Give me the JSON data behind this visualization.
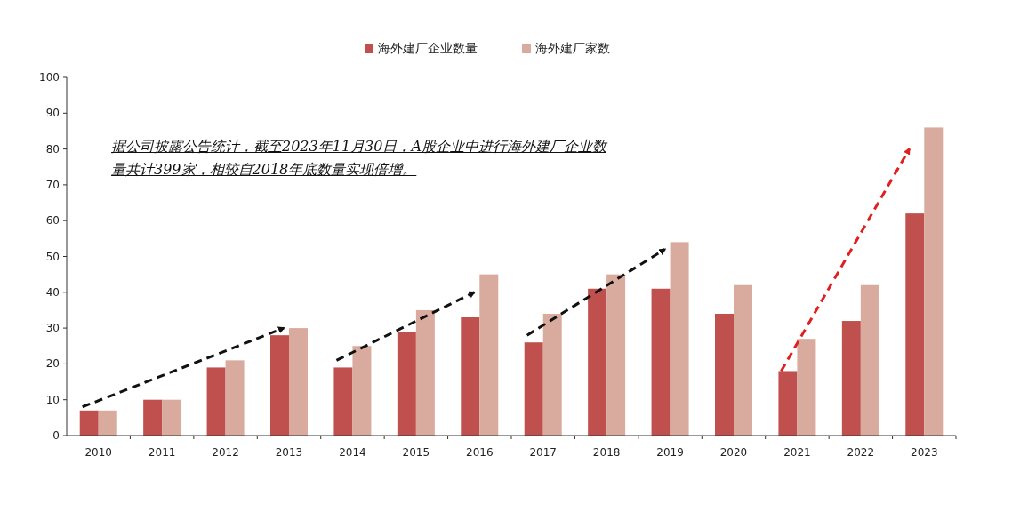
{
  "chart_data": {
    "type": "bar",
    "categories": [
      "2010",
      "2011",
      "2012",
      "2013",
      "2014",
      "2015",
      "2016",
      "2017",
      "2018",
      "2019",
      "2020",
      "2021",
      "2022",
      "2023"
    ],
    "series": [
      {
        "name": "海外建厂企业数量",
        "color": "#c0504d",
        "values": [
          7,
          10,
          19,
          28,
          19,
          29,
          33,
          26,
          41,
          41,
          34,
          18,
          32,
          62
        ]
      },
      {
        "name": "海外建厂家数",
        "color": "#d9aa9e",
        "values": [
          7,
          10,
          21,
          30,
          25,
          35,
          45,
          34,
          45,
          54,
          42,
          27,
          42,
          86
        ]
      }
    ],
    "ylim": [
      0,
      100
    ],
    "yticks": [
      0,
      10,
      20,
      30,
      40,
      50,
      60,
      70,
      80,
      90,
      100
    ],
    "annotations": [
      "据公司披露公告统计，截至2023年11月30日，A股企业中进行海外建厂企业数量共计399家，相较自2018年底数量实现倍增。"
    ],
    "legend": "top",
    "grid": false
  }
}
